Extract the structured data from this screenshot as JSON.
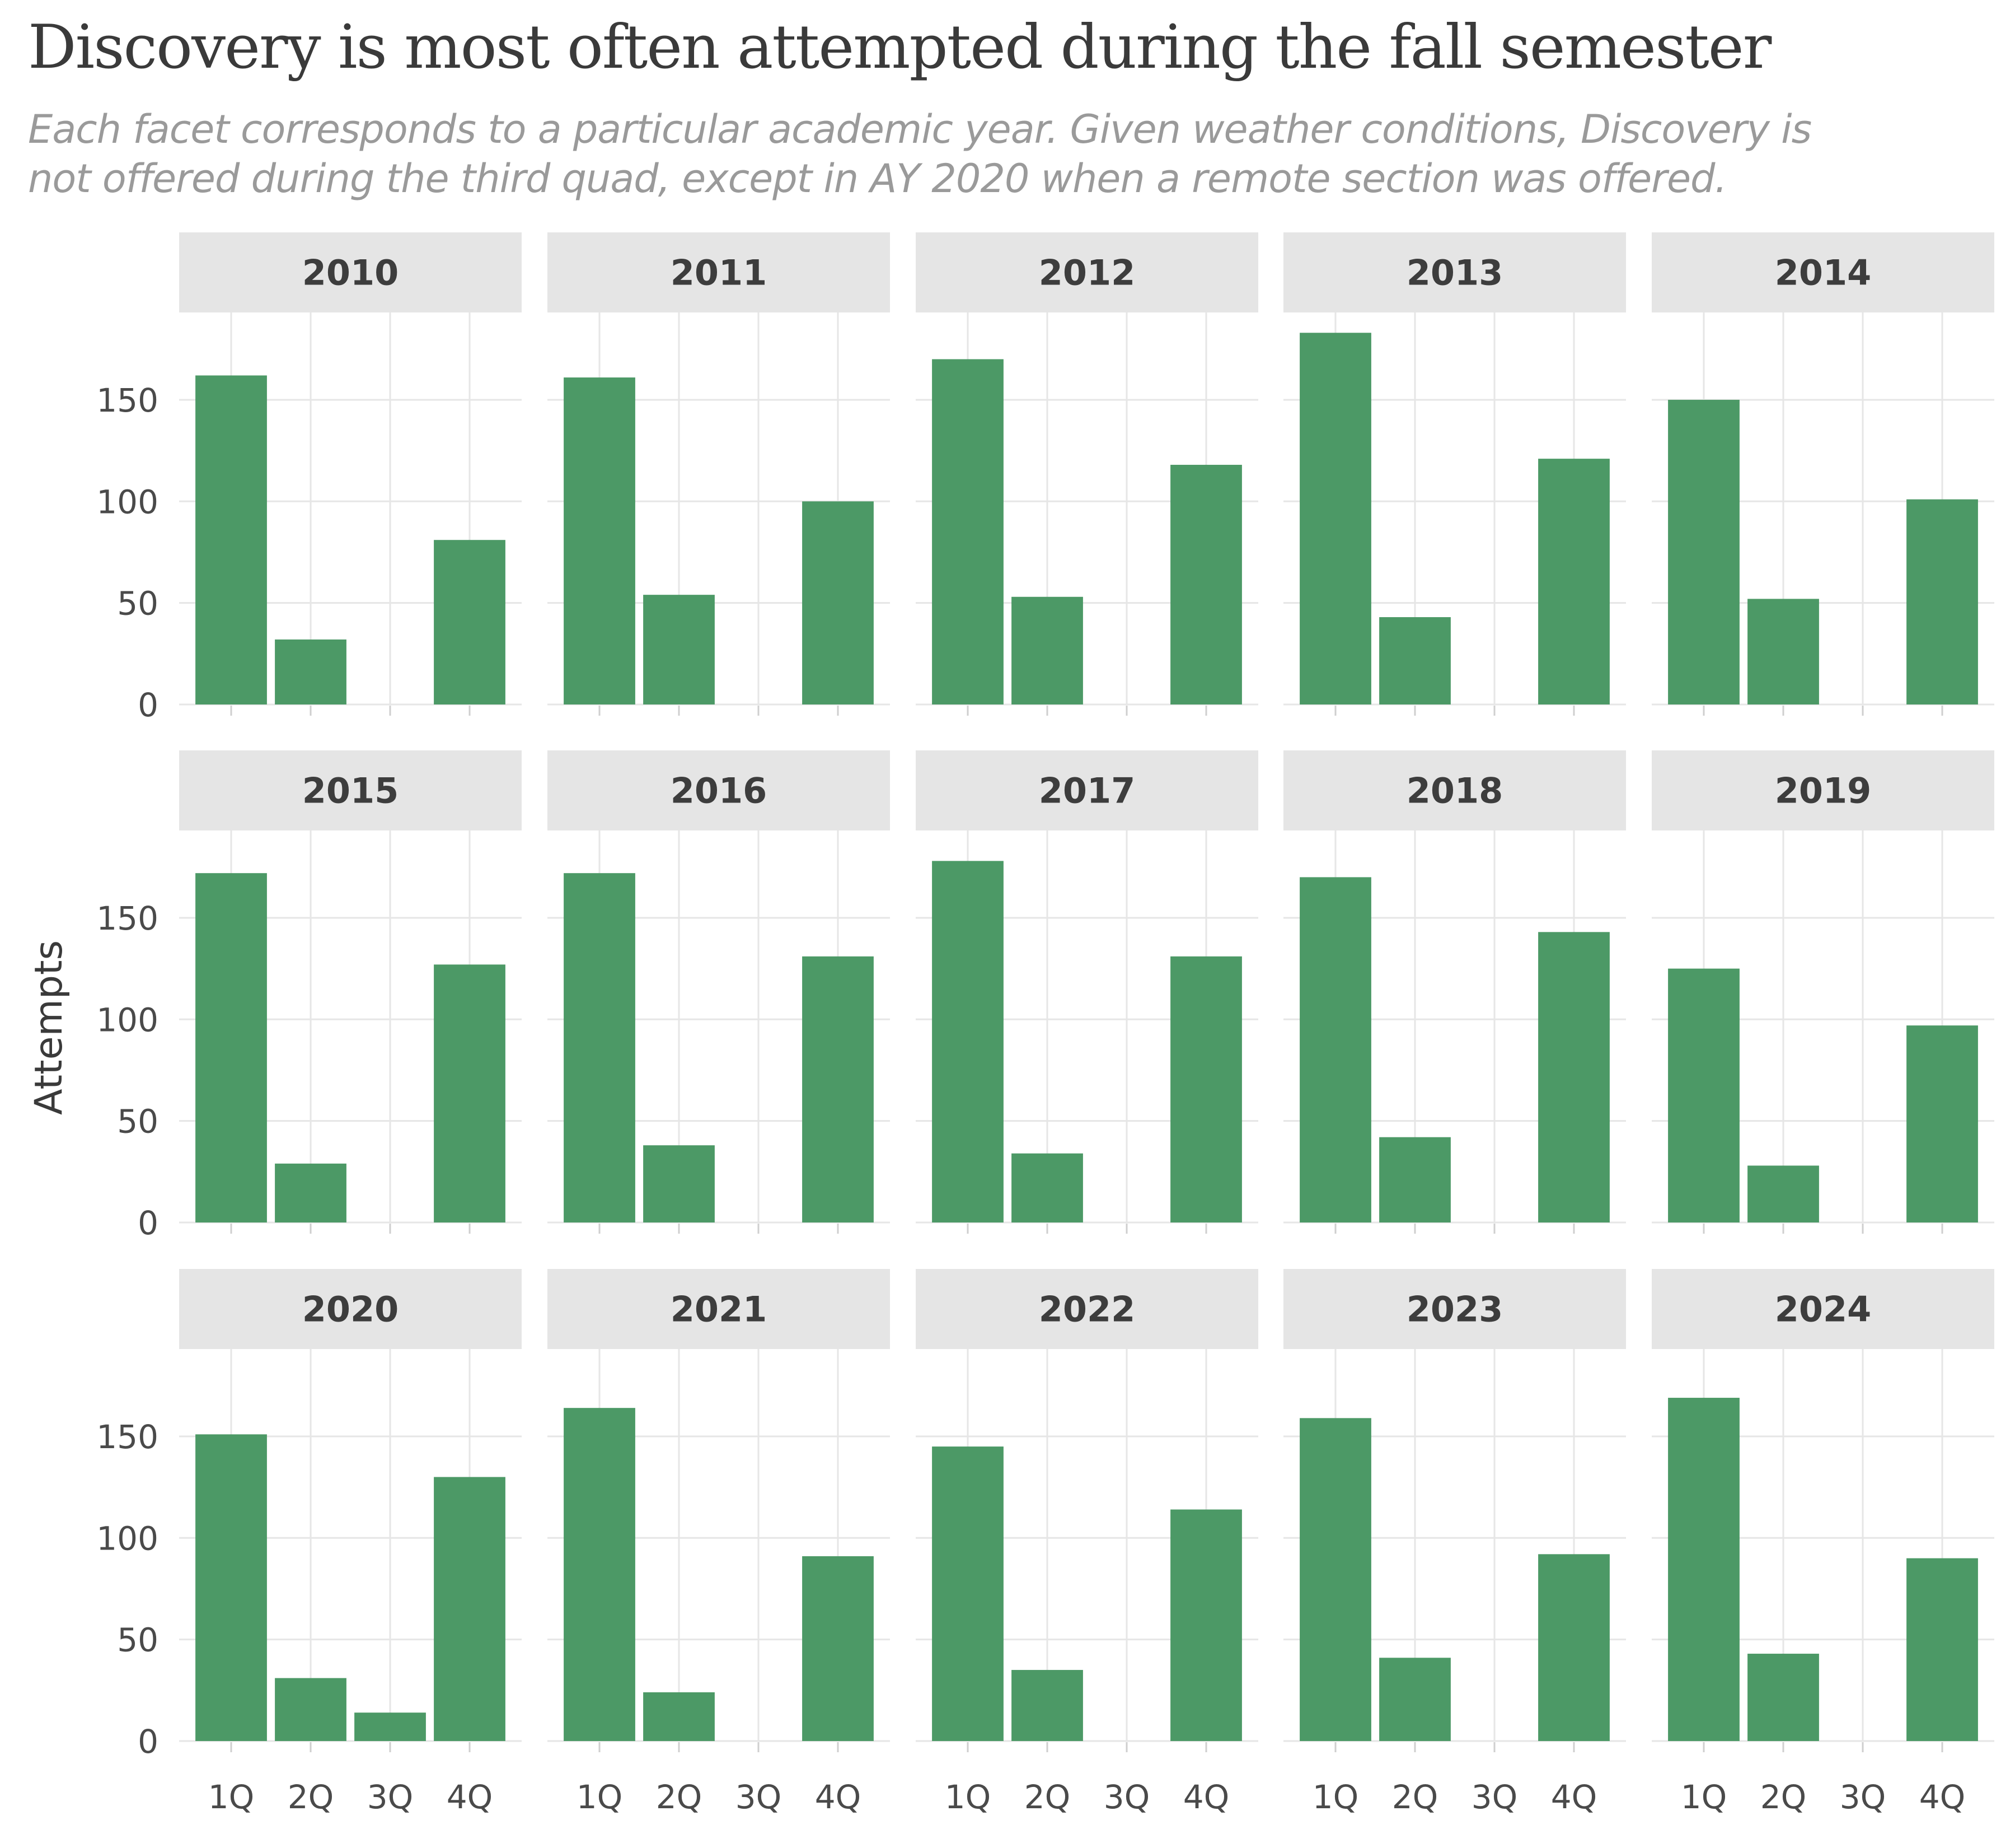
{
  "title": "Discovery is most often attempted during the fall semester",
  "subtitle_lines": [
    "Each facet corresponds to a particular academic year. Given weather conditions, Discovery is",
    "not offered during the third quad, except in AY 2020 when a remote section was offered."
  ],
  "colors": {
    "bar": "#4c9966",
    "strip": "#e5e5e5",
    "grid": "#e6e6e6",
    "text": "#3a3a3a"
  },
  "chart_data": {
    "type": "bar",
    "facets_by": "academic year",
    "ylabel": "Attempts",
    "xlabel": "",
    "categories": [
      "1Q",
      "2Q",
      "3Q",
      "4Q"
    ],
    "y_ticks": [
      0,
      50,
      100,
      150
    ],
    "ylim": [
      0,
      193
    ],
    "grid": true,
    "legend": "none",
    "panels": [
      {
        "year": "2010",
        "values": [
          162,
          32,
          0,
          81
        ]
      },
      {
        "year": "2011",
        "values": [
          161,
          54,
          0,
          100
        ]
      },
      {
        "year": "2012",
        "values": [
          170,
          53,
          0,
          118
        ]
      },
      {
        "year": "2013",
        "values": [
          183,
          43,
          0,
          121
        ]
      },
      {
        "year": "2014",
        "values": [
          150,
          52,
          0,
          101
        ]
      },
      {
        "year": "2015",
        "values": [
          172,
          29,
          0,
          127
        ]
      },
      {
        "year": "2016",
        "values": [
          172,
          38,
          0,
          131
        ]
      },
      {
        "year": "2017",
        "values": [
          178,
          34,
          0,
          131
        ]
      },
      {
        "year": "2018",
        "values": [
          170,
          42,
          0,
          143
        ]
      },
      {
        "year": "2019",
        "values": [
          125,
          28,
          0,
          97
        ]
      },
      {
        "year": "2020",
        "values": [
          151,
          31,
          14,
          130
        ]
      },
      {
        "year": "2021",
        "values": [
          164,
          24,
          0,
          91
        ]
      },
      {
        "year": "2022",
        "values": [
          145,
          35,
          0,
          114
        ]
      },
      {
        "year": "2023",
        "values": [
          159,
          41,
          0,
          92
        ]
      },
      {
        "year": "2024",
        "values": [
          169,
          43,
          0,
          90
        ]
      }
    ]
  }
}
